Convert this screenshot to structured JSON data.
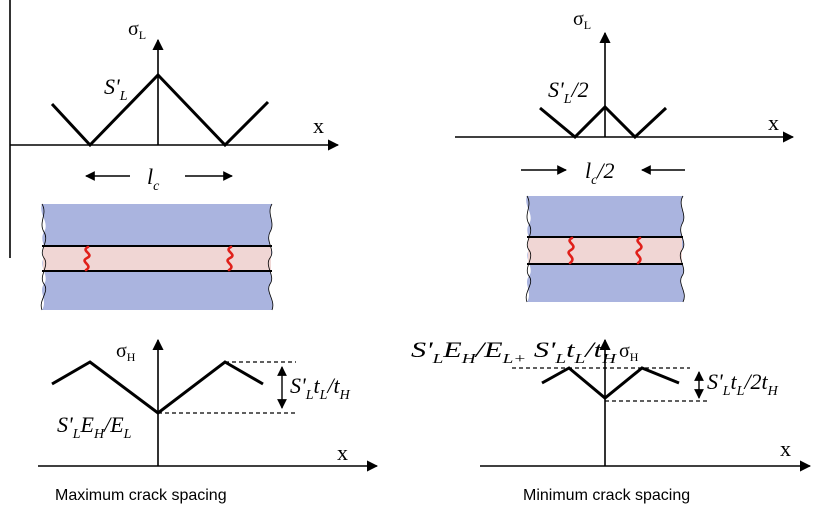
{
  "left_panel": {
    "sigma_L": "σ",
    "sigma_L_sub": "L",
    "peak_S": "S'",
    "peak_sub": "L",
    "x_top": "x",
    "spacing_l": "l",
    "spacing_sub": "c",
    "sigma_H": "σ",
    "sigma_H_sub": "H",
    "diff_S": "S'",
    "diff_sub1": "L",
    "diff_t": "t",
    "diff_sub2": "L",
    "diff_slash": "/t",
    "diff_sub3": "H",
    "base_S": "S'",
    "base_sub1": "L",
    "base_E": "E",
    "base_sub2": "H",
    "base_slash": "/E",
    "base_sub3": "L",
    "x_bottom": "x",
    "caption": "Maximum crack spacing"
  },
  "right_panel": {
    "sigma_L": "σ",
    "sigma_L_sub": "L",
    "peak_S": "S'",
    "peak_sub": "L",
    "peak_tail": "/2",
    "x_top": "x",
    "spacing_l": "l",
    "spacing_sub": "c",
    "spacing_tail": "/2",
    "top_S": "S'",
    "top_sub1": "L",
    "top_E": "E",
    "top_sub2": "H",
    "top_slash": "/E",
    "top_sub3": "L+",
    "top_S2": " S'",
    "top_sub4": "L",
    "top_t": "t",
    "top_sub5": "L",
    "top_slash2": "/t",
    "top_sub6": "H",
    "sigma_H": "σ",
    "sigma_H_sub": "H",
    "diff_S": "S'",
    "diff_sub1": "L",
    "diff_t": "t",
    "diff_sub2": "L",
    "diff_slash": "/2t",
    "diff_sub3": "H",
    "x_bottom": "x",
    "caption": "Minimum crack spacing"
  },
  "colors": {
    "outer_layer": "#aab4df",
    "inner_layer": "#f0d6d4",
    "crack": "#e0201a"
  }
}
